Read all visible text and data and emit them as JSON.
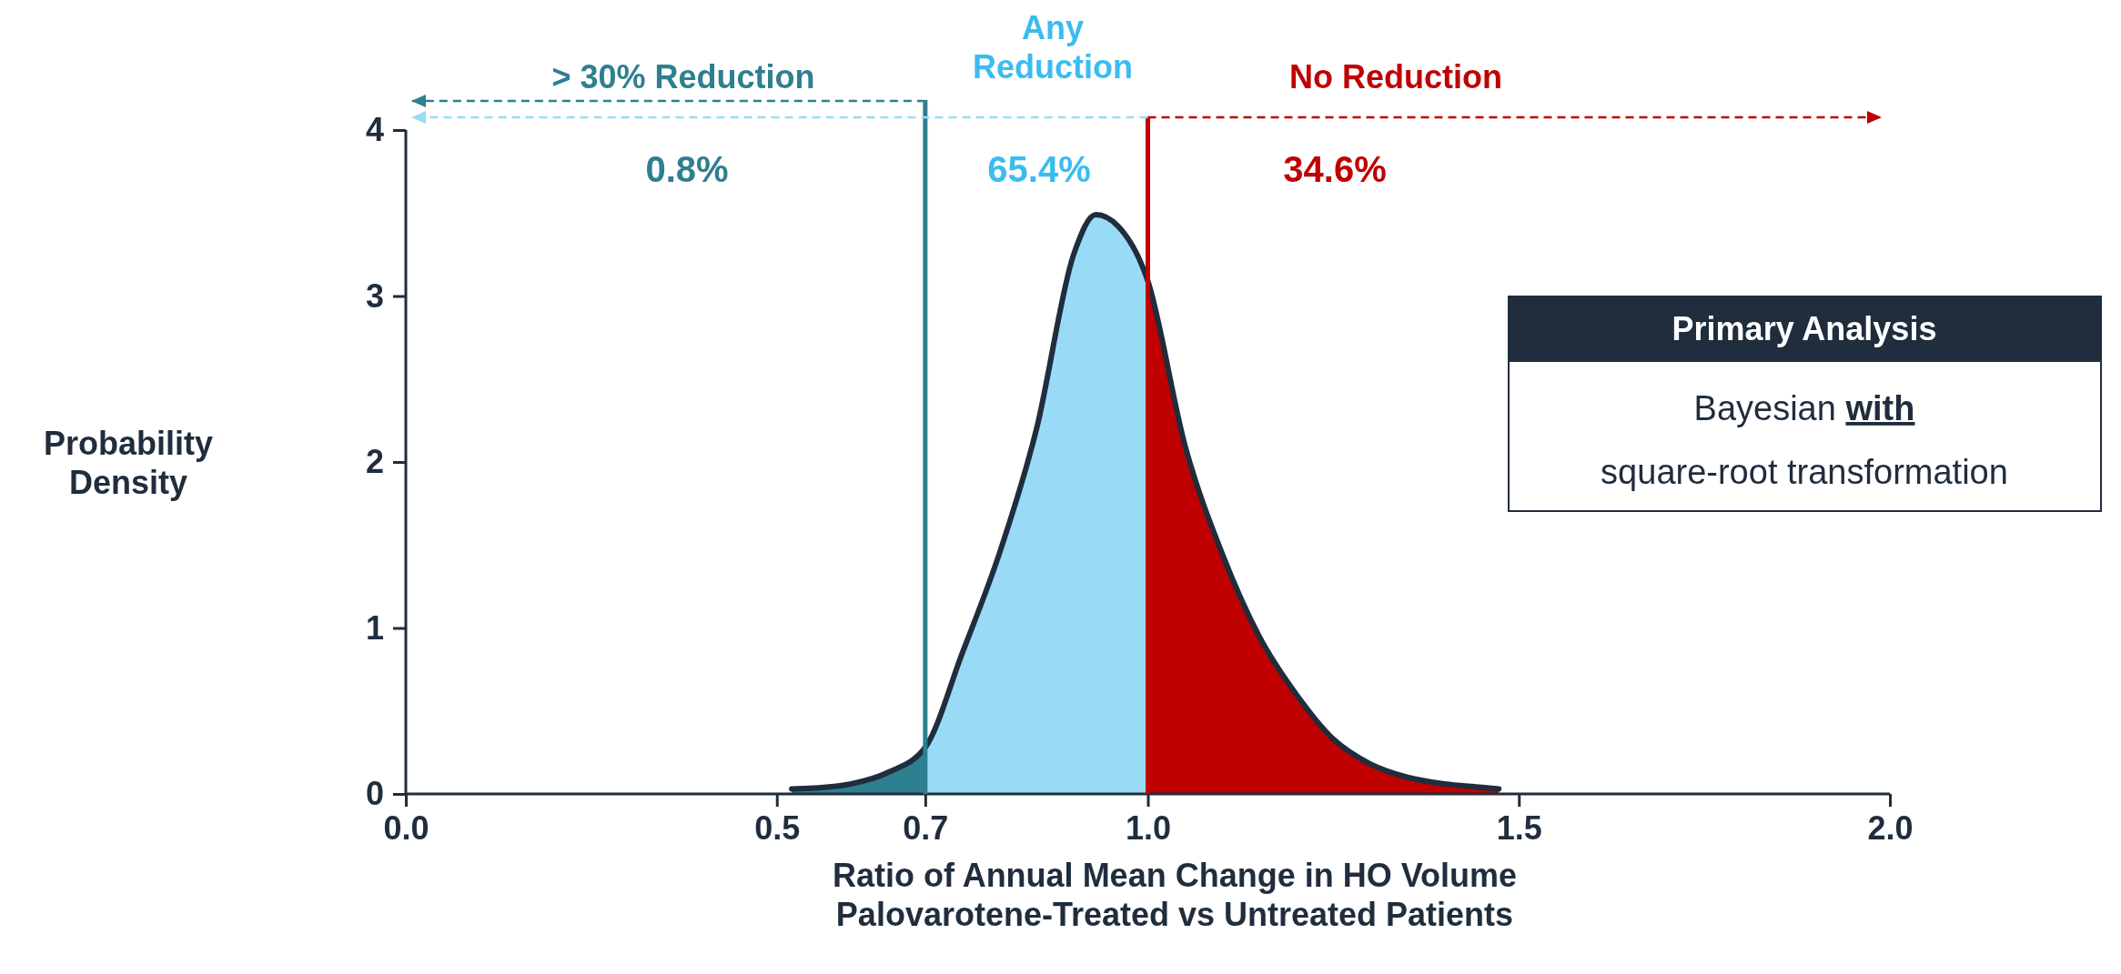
{
  "chart_data": {
    "type": "area",
    "xlabel": "Ratio of Annual Mean Change in HO Volume\nPalovarotene-Treated vs Untreated Patients",
    "ylabel": "Probability\nDensity",
    "xlim": [
      0,
      2
    ],
    "ylim": [
      0,
      4
    ],
    "xticks": [
      {
        "value": 0,
        "label": "0.0"
      },
      0.5,
      0.7,
      {
        "value": 1,
        "label": "1.0"
      },
      1.5,
      {
        "value": 2,
        "label": "2.0"
      }
    ],
    "yticks": [
      0,
      1,
      2,
      3,
      4
    ],
    "grid": false,
    "series": [
      {
        "color": "#2e7f8f",
        "x": [
          0.52,
          0.55,
          0.6,
          0.65,
          0.7
        ],
        "values": [
          0.03,
          0.035,
          0.06,
          0.13,
          0.28
        ]
      },
      {
        "color": "#99dbf7",
        "x": [
          0.7,
          0.75,
          0.8,
          0.85,
          0.9,
          0.93,
          0.96,
          1.0
        ],
        "values": [
          0.28,
          0.85,
          1.45,
          2.2,
          3.25,
          3.49,
          3.42,
          3.09
        ]
      },
      {
        "color": "#c00000",
        "x": [
          1.0,
          1.05,
          1.1,
          1.15,
          1.2,
          1.25,
          1.3,
          1.35,
          1.4,
          1.45,
          1.473
        ],
        "values": [
          3.09,
          2.1,
          1.45,
          0.95,
          0.6,
          0.33,
          0.18,
          0.1,
          0.06,
          0.04,
          0.03
        ]
      },
      {
        "type": "line",
        "color": "#1f2d3d",
        "x": [
          0.52,
          0.55,
          0.6,
          0.65,
          0.7,
          0.75,
          0.8,
          0.85,
          0.9,
          0.93,
          0.96,
          1.0,
          1.05,
          1.1,
          1.15,
          1.2,
          1.25,
          1.3,
          1.35,
          1.4,
          1.45,
          1.473
        ],
        "values": [
          0.03,
          0.035,
          0.06,
          0.13,
          0.28,
          0.85,
          1.45,
          2.2,
          3.25,
          3.49,
          3.42,
          3.09,
          2.1,
          1.45,
          0.95,
          0.6,
          0.33,
          0.18,
          0.1,
          0.06,
          0.04,
          0.03
        ]
      }
    ],
    "ref_lines": [
      {
        "axis": "x",
        "value": 0.7,
        "color": "#2e7f8f"
      },
      {
        "axis": "x",
        "value": 1.0,
        "color": "#c00000"
      }
    ],
    "annotations": [
      "> 30% Reduction",
      "Any\nReduction",
      "No Reduction",
      "0.8%",
      "65.4%",
      "34.6%",
      "Primary Analysis",
      "Bayesian",
      "with",
      "square-root transformation"
    ]
  }
}
